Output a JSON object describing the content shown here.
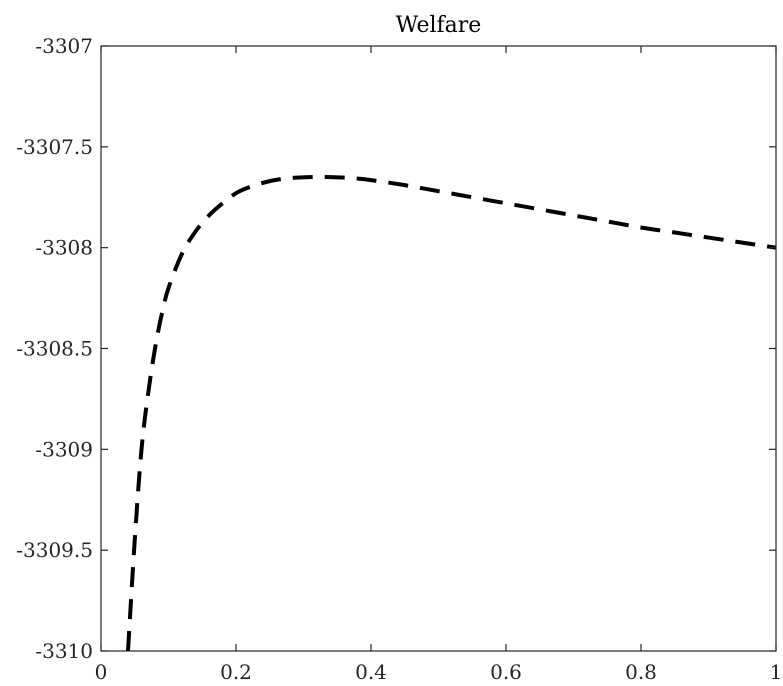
{
  "chart_data": {
    "type": "line",
    "title": "Welfare",
    "xlabel": "",
    "ylabel": "",
    "xlim": [
      0,
      1
    ],
    "ylim": [
      -3310,
      -3307
    ],
    "x_ticks": [
      0,
      0.2,
      0.4,
      0.6,
      0.8,
      1
    ],
    "x_tick_labels": [
      "0",
      "0.2",
      "0.4",
      "0.6",
      "0.8",
      "1"
    ],
    "y_ticks": [
      -3307,
      -3307.5,
      -3308,
      -3308.5,
      -3309,
      -3309.5,
      -3310
    ],
    "y_tick_labels": [
      "-3307",
      "-3307.5",
      "-3308",
      "-3308.5",
      "-3309",
      "-3309.5",
      "-3310"
    ],
    "grid": false,
    "box": true,
    "series": [
      {
        "line_style": "dashed",
        "color": "#000000",
        "x": [
          0.04,
          0.05,
          0.06,
          0.07,
          0.08,
          0.09,
          0.1,
          0.12,
          0.14,
          0.16,
          0.18,
          0.2,
          0.22,
          0.25,
          0.28,
          0.31,
          0.34,
          0.37,
          0.4,
          0.45,
          0.5,
          0.55,
          0.6,
          0.65,
          0.7,
          0.75,
          0.8,
          0.85,
          0.9,
          0.95,
          1.0
        ],
        "y": [
          -3310.0,
          -3309.45,
          -3309.0,
          -3308.72,
          -3308.5,
          -3308.33,
          -3308.2,
          -3308.03,
          -3307.92,
          -3307.84,
          -3307.78,
          -3307.73,
          -3307.7,
          -3307.67,
          -3307.655,
          -3307.65,
          -3307.65,
          -3307.655,
          -3307.665,
          -3307.69,
          -3307.72,
          -3307.75,
          -3307.78,
          -3307.81,
          -3307.84,
          -3307.87,
          -3307.9,
          -3307.925,
          -3307.95,
          -3307.975,
          -3308.0
        ]
      }
    ]
  }
}
